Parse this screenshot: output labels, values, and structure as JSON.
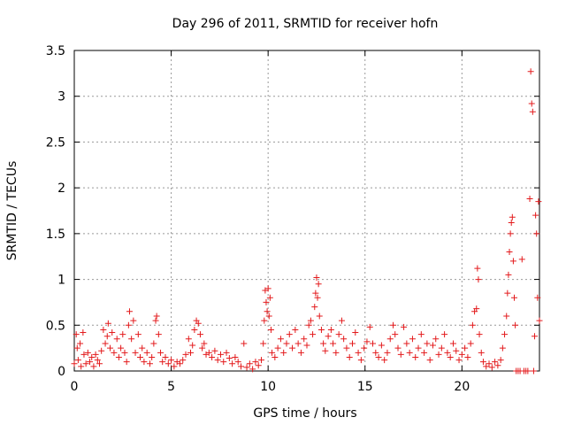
{
  "chart_data": {
    "type": "scatter",
    "title": "Day 296 of 2011, SRMTID for receiver hofn",
    "xlabel": "GPS time / hours",
    "ylabel": "SRMTID / TECUs",
    "xlim": [
      0,
      24
    ],
    "ylim": [
      0,
      3.5
    ],
    "x_ticks": [
      0,
      5,
      10,
      15,
      20
    ],
    "y_ticks": [
      0,
      0.5,
      1,
      1.5,
      2,
      2.5,
      3,
      3.5
    ],
    "x_tick_labels": [
      "0",
      "5",
      "10",
      "15",
      "20"
    ],
    "y_tick_labels": [
      "0",
      "0.5",
      "1",
      "1.5",
      "2",
      "2.5",
      "3",
      "3.5"
    ],
    "grid": true,
    "marker": "+",
    "series": [
      {
        "color": "#e31a1c",
        "points": [
          [
            0.0,
            0.08
          ],
          [
            0.1,
            0.4
          ],
          [
            0.15,
            0.25
          ],
          [
            0.2,
            0.12
          ],
          [
            0.3,
            0.3
          ],
          [
            0.35,
            0.05
          ],
          [
            0.45,
            0.42
          ],
          [
            0.5,
            0.18
          ],
          [
            0.6,
            0.08
          ],
          [
            0.7,
            0.2
          ],
          [
            0.8,
            0.1
          ],
          [
            0.9,
            0.15
          ],
          [
            1.0,
            0.05
          ],
          [
            1.1,
            0.18
          ],
          [
            1.2,
            0.12
          ],
          [
            1.3,
            0.08
          ],
          [
            1.4,
            0.22
          ],
          [
            1.5,
            0.45
          ],
          [
            1.6,
            0.3
          ],
          [
            1.7,
            0.38
          ],
          [
            1.75,
            0.52
          ],
          [
            1.85,
            0.25
          ],
          [
            1.95,
            0.42
          ],
          [
            2.05,
            0.2
          ],
          [
            2.2,
            0.35
          ],
          [
            2.3,
            0.15
          ],
          [
            2.4,
            0.25
          ],
          [
            2.5,
            0.4
          ],
          [
            2.6,
            0.2
          ],
          [
            2.7,
            0.1
          ],
          [
            2.8,
            0.5
          ],
          [
            2.85,
            0.65
          ],
          [
            2.95,
            0.35
          ],
          [
            3.05,
            0.55
          ],
          [
            3.15,
            0.2
          ],
          [
            3.3,
            0.4
          ],
          [
            3.4,
            0.15
          ],
          [
            3.5,
            0.25
          ],
          [
            3.6,
            0.1
          ],
          [
            3.75,
            0.2
          ],
          [
            3.9,
            0.08
          ],
          [
            4.0,
            0.15
          ],
          [
            4.1,
            0.3
          ],
          [
            4.2,
            0.55
          ],
          [
            4.25,
            0.6
          ],
          [
            4.35,
            0.4
          ],
          [
            4.45,
            0.2
          ],
          [
            4.55,
            0.1
          ],
          [
            4.7,
            0.15
          ],
          [
            4.85,
            0.08
          ],
          [
            5.0,
            0.12
          ],
          [
            5.15,
            0.05
          ],
          [
            5.3,
            0.1
          ],
          [
            5.45,
            0.08
          ],
          [
            5.6,
            0.12
          ],
          [
            5.75,
            0.18
          ],
          [
            5.9,
            0.35
          ],
          [
            6.0,
            0.2
          ],
          [
            6.1,
            0.28
          ],
          [
            6.2,
            0.45
          ],
          [
            6.3,
            0.55
          ],
          [
            6.4,
            0.52
          ],
          [
            6.5,
            0.4
          ],
          [
            6.6,
            0.25
          ],
          [
            6.7,
            0.3
          ],
          [
            6.8,
            0.18
          ],
          [
            6.95,
            0.2
          ],
          [
            7.1,
            0.15
          ],
          [
            7.25,
            0.22
          ],
          [
            7.4,
            0.12
          ],
          [
            7.55,
            0.18
          ],
          [
            7.7,
            0.1
          ],
          [
            7.85,
            0.2
          ],
          [
            8.0,
            0.14
          ],
          [
            8.15,
            0.08
          ],
          [
            8.3,
            0.15
          ],
          [
            8.45,
            0.1
          ],
          [
            8.6,
            0.05
          ],
          [
            8.75,
            0.3
          ],
          [
            8.9,
            0.04
          ],
          [
            9.05,
            0.08
          ],
          [
            9.2,
            0.02
          ],
          [
            9.35,
            0.1
          ],
          [
            9.5,
            0.06
          ],
          [
            9.65,
            0.12
          ],
          [
            9.75,
            0.3
          ],
          [
            9.8,
            0.55
          ],
          [
            9.85,
            0.88
          ],
          [
            9.9,
            0.75
          ],
          [
            9.95,
            0.65
          ],
          [
            10.0,
            0.9
          ],
          [
            10.05,
            0.6
          ],
          [
            10.1,
            0.8
          ],
          [
            10.15,
            0.45
          ],
          [
            10.2,
            0.2
          ],
          [
            10.35,
            0.15
          ],
          [
            10.5,
            0.25
          ],
          [
            10.65,
            0.35
          ],
          [
            10.8,
            0.2
          ],
          [
            10.95,
            0.3
          ],
          [
            11.1,
            0.4
          ],
          [
            11.25,
            0.25
          ],
          [
            11.4,
            0.45
          ],
          [
            11.55,
            0.3
          ],
          [
            11.7,
            0.2
          ],
          [
            11.85,
            0.35
          ],
          [
            12.0,
            0.28
          ],
          [
            12.1,
            0.5
          ],
          [
            12.2,
            0.55
          ],
          [
            12.3,
            0.4
          ],
          [
            12.4,
            0.7
          ],
          [
            12.45,
            0.85
          ],
          [
            12.5,
            1.02
          ],
          [
            12.55,
            0.8
          ],
          [
            12.6,
            0.95
          ],
          [
            12.65,
            0.6
          ],
          [
            12.75,
            0.45
          ],
          [
            12.85,
            0.3
          ],
          [
            12.95,
            0.22
          ],
          [
            13.1,
            0.38
          ],
          [
            13.25,
            0.45
          ],
          [
            13.35,
            0.3
          ],
          [
            13.5,
            0.2
          ],
          [
            13.65,
            0.4
          ],
          [
            13.8,
            0.55
          ],
          [
            13.9,
            0.35
          ],
          [
            14.05,
            0.25
          ],
          [
            14.2,
            0.15
          ],
          [
            14.35,
            0.3
          ],
          [
            14.5,
            0.42
          ],
          [
            14.65,
            0.2
          ],
          [
            14.8,
            0.12
          ],
          [
            14.95,
            0.25
          ],
          [
            15.1,
            0.32
          ],
          [
            15.25,
            0.48
          ],
          [
            15.4,
            0.3
          ],
          [
            15.55,
            0.2
          ],
          [
            15.7,
            0.15
          ],
          [
            15.85,
            0.28
          ],
          [
            16.0,
            0.12
          ],
          [
            16.15,
            0.2
          ],
          [
            16.3,
            0.35
          ],
          [
            16.45,
            0.5
          ],
          [
            16.55,
            0.4
          ],
          [
            16.7,
            0.25
          ],
          [
            16.85,
            0.18
          ],
          [
            17.0,
            0.48
          ],
          [
            17.15,
            0.3
          ],
          [
            17.3,
            0.2
          ],
          [
            17.45,
            0.35
          ],
          [
            17.6,
            0.15
          ],
          [
            17.75,
            0.25
          ],
          [
            17.9,
            0.4
          ],
          [
            18.05,
            0.2
          ],
          [
            18.2,
            0.3
          ],
          [
            18.35,
            0.12
          ],
          [
            18.5,
            0.28
          ],
          [
            18.65,
            0.35
          ],
          [
            18.8,
            0.18
          ],
          [
            18.95,
            0.25
          ],
          [
            19.1,
            0.4
          ],
          [
            19.25,
            0.2
          ],
          [
            19.4,
            0.15
          ],
          [
            19.55,
            0.3
          ],
          [
            19.7,
            0.22
          ],
          [
            19.85,
            0.12
          ],
          [
            20.0,
            0.18
          ],
          [
            20.15,
            0.25
          ],
          [
            20.3,
            0.15
          ],
          [
            20.45,
            0.3
          ],
          [
            20.55,
            0.5
          ],
          [
            20.65,
            0.65
          ],
          [
            20.75,
            0.68
          ],
          [
            20.8,
            1.12
          ],
          [
            20.85,
            1.0
          ],
          [
            20.9,
            0.4
          ],
          [
            21.0,
            0.2
          ],
          [
            21.1,
            0.1
          ],
          [
            21.25,
            0.05
          ],
          [
            21.4,
            0.08
          ],
          [
            21.55,
            0.04
          ],
          [
            21.7,
            0.1
          ],
          [
            21.85,
            0.06
          ],
          [
            22.0,
            0.12
          ],
          [
            22.1,
            0.25
          ],
          [
            22.2,
            0.4
          ],
          [
            22.3,
            0.6
          ],
          [
            22.35,
            0.85
          ],
          [
            22.4,
            1.05
          ],
          [
            22.45,
            1.3
          ],
          [
            22.5,
            1.5
          ],
          [
            22.55,
            1.62
          ],
          [
            22.6,
            1.68
          ],
          [
            22.65,
            1.2
          ],
          [
            22.7,
            0.8
          ],
          [
            22.75,
            0.5
          ],
          [
            22.8,
            0.0
          ],
          [
            22.9,
            0.0
          ],
          [
            23.0,
            0.0
          ],
          [
            23.1,
            1.22
          ],
          [
            23.2,
            0.0
          ],
          [
            23.3,
            0.0
          ],
          [
            23.4,
            0.0
          ],
          [
            23.5,
            1.88
          ],
          [
            23.55,
            3.27
          ],
          [
            23.6,
            2.92
          ],
          [
            23.65,
            2.83
          ],
          [
            23.7,
            0.0
          ],
          [
            23.75,
            0.38
          ],
          [
            23.8,
            1.7
          ],
          [
            23.85,
            1.5
          ],
          [
            23.9,
            0.8
          ],
          [
            23.95,
            1.85
          ],
          [
            24.0,
            0.55
          ]
        ]
      }
    ]
  }
}
